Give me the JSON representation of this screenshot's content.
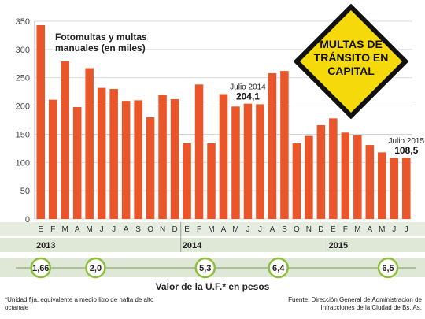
{
  "chart_data": {
    "type": "bar",
    "title": "Fotomultas y multas manuales (en miles)",
    "ylim": [
      0,
      350
    ],
    "yticks": [
      0,
      50,
      100,
      150,
      200,
      250,
      300,
      350
    ],
    "grid": true,
    "categories": [
      "E",
      "F",
      "M",
      "A",
      "M",
      "J",
      "J",
      "A",
      "S",
      "O",
      "N",
      "D",
      "E",
      "F",
      "M",
      "A",
      "M",
      "J",
      "J",
      "A",
      "S",
      "O",
      "N",
      "D",
      "E",
      "F",
      "M",
      "A",
      "M",
      "J",
      "J"
    ],
    "years": [
      {
        "label": "2013",
        "start": 0
      },
      {
        "label": "2014",
        "start": 12
      },
      {
        "label": "2015",
        "start": 24
      }
    ],
    "values": [
      343,
      211,
      279,
      198,
      267,
      232,
      230,
      209,
      210,
      180,
      220,
      212,
      134,
      238,
      134,
      221,
      199,
      204.1,
      203,
      258,
      262,
      134,
      147,
      166,
      178,
      153,
      148,
      131,
      118,
      108,
      108.5
    ],
    "annotations": [
      {
        "index": 17,
        "label": "Julio 2014",
        "value": "204,1"
      },
      {
        "index": 30,
        "label": "Julio 2015",
        "value": "108,5"
      }
    ],
    "bar_color": "#e8562a",
    "uf_title": "Valor de la U.F.* en pesos",
    "uf_values": [
      {
        "index": 0,
        "value": "1,66"
      },
      {
        "index": 4.5,
        "value": "2,0"
      },
      {
        "index": 13.5,
        "value": "5,3"
      },
      {
        "index": 19.5,
        "value": "6,4"
      },
      {
        "index": 28.5,
        "value": "6,5"
      }
    ]
  },
  "sign": {
    "line1": "MULTAS DE",
    "line2": "TRÁNSITO EN",
    "line3": "CAPITAL",
    "color": "#f5d90a"
  },
  "footnote": "*Unidad fija, equivalente a medio litro de nafta de alto octanaje",
  "source": "Fuente: Dirección General de Administración de Infracciones de la Ciudad de Bs. As."
}
